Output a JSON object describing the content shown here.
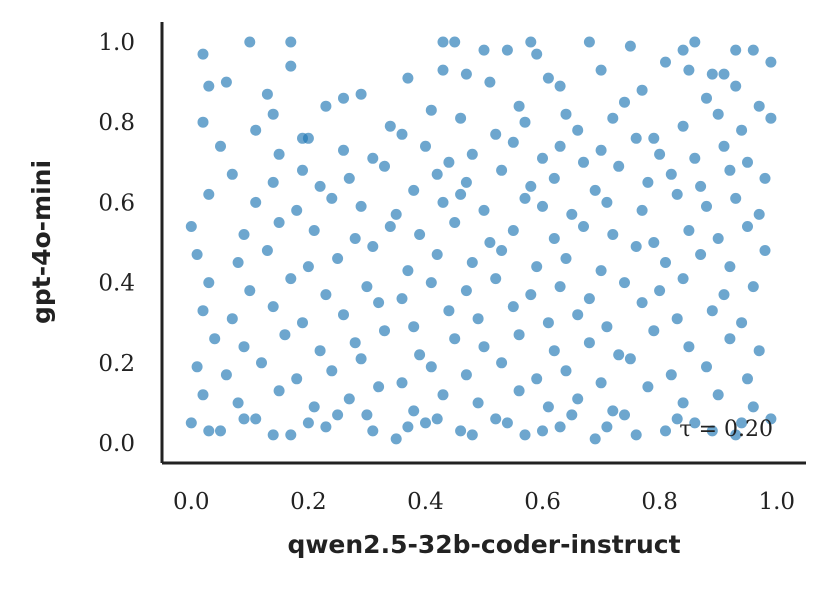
{
  "chart_data": {
    "type": "scatter",
    "xlabel": "qwen2.5-32b-coder-instruct",
    "ylabel": "gpt-4o-mini",
    "xlim": [
      -0.05,
      1.05
    ],
    "ylim": [
      -0.05,
      1.05
    ],
    "xticks": [
      "0.0",
      "0.2",
      "0.4",
      "0.6",
      "0.8",
      "1.0"
    ],
    "yticks": [
      "0.0",
      "0.2",
      "0.4",
      "0.6",
      "0.8",
      "1.0"
    ],
    "annotation": "τ = 0.20",
    "grid": false,
    "color": "#1f77b4",
    "series": [
      {
        "x": [
          0.02,
          0.1,
          0.17,
          0.43,
          0.45,
          0.5,
          0.54,
          0.58,
          0.59,
          0.68,
          0.75,
          0.81,
          0.84,
          0.86,
          0.89,
          0.93,
          0.96,
          0.99,
          0.03,
          0.17,
          0.13,
          0.06,
          0.26,
          0.29,
          0.37,
          0.43,
          0.47,
          0.51,
          0.56,
          0.61,
          0.63,
          0.7,
          0.74,
          0.77,
          0.85,
          0.88,
          0.91,
          0.93,
          0.97,
          0.02,
          0.11,
          0.14,
          0.2,
          0.23,
          0.34,
          0.41,
          0.46,
          0.52,
          0.57,
          0.64,
          0.66,
          0.72,
          0.79,
          0.84,
          0.9,
          0.94,
          0.99,
          0.05,
          0.15,
          0.19,
          0.26,
          0.31,
          0.36,
          0.4,
          0.44,
          0.48,
          0.55,
          0.6,
          0.63,
          0.67,
          0.7,
          0.76,
          0.8,
          0.86,
          0.91,
          0.95,
          0.07,
          0.14,
          0.19,
          0.22,
          0.27,
          0.33,
          0.38,
          0.42,
          0.47,
          0.53,
          0.58,
          0.62,
          0.69,
          0.73,
          0.78,
          0.82,
          0.87,
          0.92,
          0.98,
          0.03,
          0.11,
          0.18,
          0.24,
          0.29,
          0.35,
          0.43,
          0.46,
          0.5,
          0.57,
          0.6,
          0.65,
          0.71,
          0.77,
          0.83,
          0.88,
          0.93,
          0.97,
          0.0,
          0.09,
          0.15,
          0.21,
          0.28,
          0.34,
          0.39,
          0.45,
          0.51,
          0.55,
          0.62,
          0.67,
          0.72,
          0.79,
          0.85,
          0.9,
          0.95,
          0.01,
          0.08,
          0.13,
          0.2,
          0.25,
          0.31,
          0.37,
          0.42,
          0.48,
          0.53,
          0.59,
          0.64,
          0.7,
          0.76,
          0.81,
          0.87,
          0.92,
          0.98,
          0.03,
          0.1,
          0.17,
          0.23,
          0.3,
          0.36,
          0.41,
          0.47,
          0.52,
          0.58,
          0.63,
          0.68,
          0.74,
          0.8,
          0.84,
          0.91,
          0.96,
          0.02,
          0.07,
          0.14,
          0.19,
          0.26,
          0.32,
          0.38,
          0.44,
          0.49,
          0.55,
          0.61,
          0.66,
          0.71,
          0.77,
          0.83,
          0.89,
          0.94,
          0.04,
          0.09,
          0.16,
          0.22,
          0.28,
          0.33,
          0.39,
          0.45,
          0.5,
          0.56,
          0.62,
          0.68,
          0.73,
          0.79,
          0.85,
          0.92,
          0.97,
          0.01,
          0.06,
          0.12,
          0.18,
          0.24,
          0.29,
          0.36,
          0.41,
          0.47,
          0.53,
          0.59,
          0.64,
          0.7,
          0.75,
          0.82,
          0.88,
          0.95,
          0.02,
          0.08,
          0.15,
          0.21,
          0.27,
          0.32,
          0.38,
          0.43,
          0.49,
          0.56,
          0.61,
          0.66,
          0.72,
          0.78,
          0.84,
          0.9,
          0.96,
          0.0,
          0.05,
          0.11,
          0.17,
          0.23,
          0.3,
          0.35,
          0.4,
          0.46,
          0.52,
          0.57,
          0.63,
          0.69,
          0.74,
          0.81,
          0.86,
          0.93,
          0.99,
          0.03,
          0.09,
          0.14,
          0.2,
          0.25,
          0.31,
          0.37,
          0.42,
          0.48,
          0.54,
          0.6,
          0.65,
          0.71,
          0.76,
          0.83,
          0.89,
          0.94
        ],
        "y": [
          0.97,
          1.0,
          1.0,
          1.0,
          1.0,
          0.98,
          0.98,
          1.0,
          0.97,
          1.0,
          0.99,
          0.95,
          0.98,
          1.0,
          0.92,
          0.98,
          0.98,
          0.95,
          0.89,
          0.94,
          0.87,
          0.9,
          0.86,
          0.87,
          0.91,
          0.93,
          0.92,
          0.9,
          0.84,
          0.91,
          0.89,
          0.93,
          0.85,
          0.88,
          0.93,
          0.86,
          0.92,
          0.89,
          0.84,
          0.8,
          0.78,
          0.82,
          0.76,
          0.84,
          0.79,
          0.83,
          0.81,
          0.77,
          0.8,
          0.82,
          0.78,
          0.81,
          0.76,
          0.79,
          0.82,
          0.78,
          0.81,
          0.74,
          0.72,
          0.76,
          0.73,
          0.71,
          0.77,
          0.74,
          0.7,
          0.72,
          0.75,
          0.71,
          0.74,
          0.7,
          0.73,
          0.76,
          0.72,
          0.71,
          0.74,
          0.7,
          0.67,
          0.65,
          0.68,
          0.64,
          0.66,
          0.69,
          0.63,
          0.67,
          0.65,
          0.68,
          0.64,
          0.66,
          0.63,
          0.69,
          0.65,
          0.67,
          0.64,
          0.68,
          0.66,
          0.62,
          0.6,
          0.58,
          0.61,
          0.59,
          0.57,
          0.6,
          0.62,
          0.58,
          0.61,
          0.59,
          0.57,
          0.6,
          0.58,
          0.62,
          0.59,
          0.61,
          0.57,
          0.54,
          0.52,
          0.55,
          0.53,
          0.51,
          0.54,
          0.52,
          0.55,
          0.5,
          0.53,
          0.51,
          0.54,
          0.52,
          0.5,
          0.53,
          0.51,
          0.54,
          0.47,
          0.45,
          0.48,
          0.44,
          0.46,
          0.49,
          0.43,
          0.47,
          0.45,
          0.48,
          0.44,
          0.46,
          0.43,
          0.49,
          0.45,
          0.47,
          0.44,
          0.48,
          0.4,
          0.38,
          0.41,
          0.37,
          0.39,
          0.36,
          0.4,
          0.38,
          0.41,
          0.37,
          0.39,
          0.36,
          0.4,
          0.38,
          0.41,
          0.37,
          0.39,
          0.33,
          0.31,
          0.34,
          0.3,
          0.32,
          0.35,
          0.29,
          0.33,
          0.31,
          0.34,
          0.3,
          0.32,
          0.29,
          0.35,
          0.31,
          0.33,
          0.3,
          0.26,
          0.24,
          0.27,
          0.23,
          0.25,
          0.28,
          0.22,
          0.26,
          0.24,
          0.27,
          0.23,
          0.25,
          0.22,
          0.28,
          0.24,
          0.26,
          0.23,
          0.19,
          0.17,
          0.2,
          0.16,
          0.18,
          0.21,
          0.15,
          0.19,
          0.17,
          0.2,
          0.16,
          0.18,
          0.15,
          0.21,
          0.17,
          0.19,
          0.16,
          0.12,
          0.1,
          0.13,
          0.09,
          0.11,
          0.14,
          0.08,
          0.12,
          0.1,
          0.13,
          0.09,
          0.11,
          0.08,
          0.14,
          0.1,
          0.12,
          0.09,
          0.05,
          0.03,
          0.06,
          0.02,
          0.04,
          0.07,
          0.01,
          0.05,
          0.03,
          0.06,
          0.02,
          0.04,
          0.01,
          0.07,
          0.03,
          0.05,
          0.02,
          0.06,
          0.03,
          0.06,
          0.02,
          0.05,
          0.07,
          0.03,
          0.04,
          0.06,
          0.02,
          0.05,
          0.03,
          0.07,
          0.04,
          0.02,
          0.06,
          0.03,
          0.05
        ]
      }
    ]
  }
}
